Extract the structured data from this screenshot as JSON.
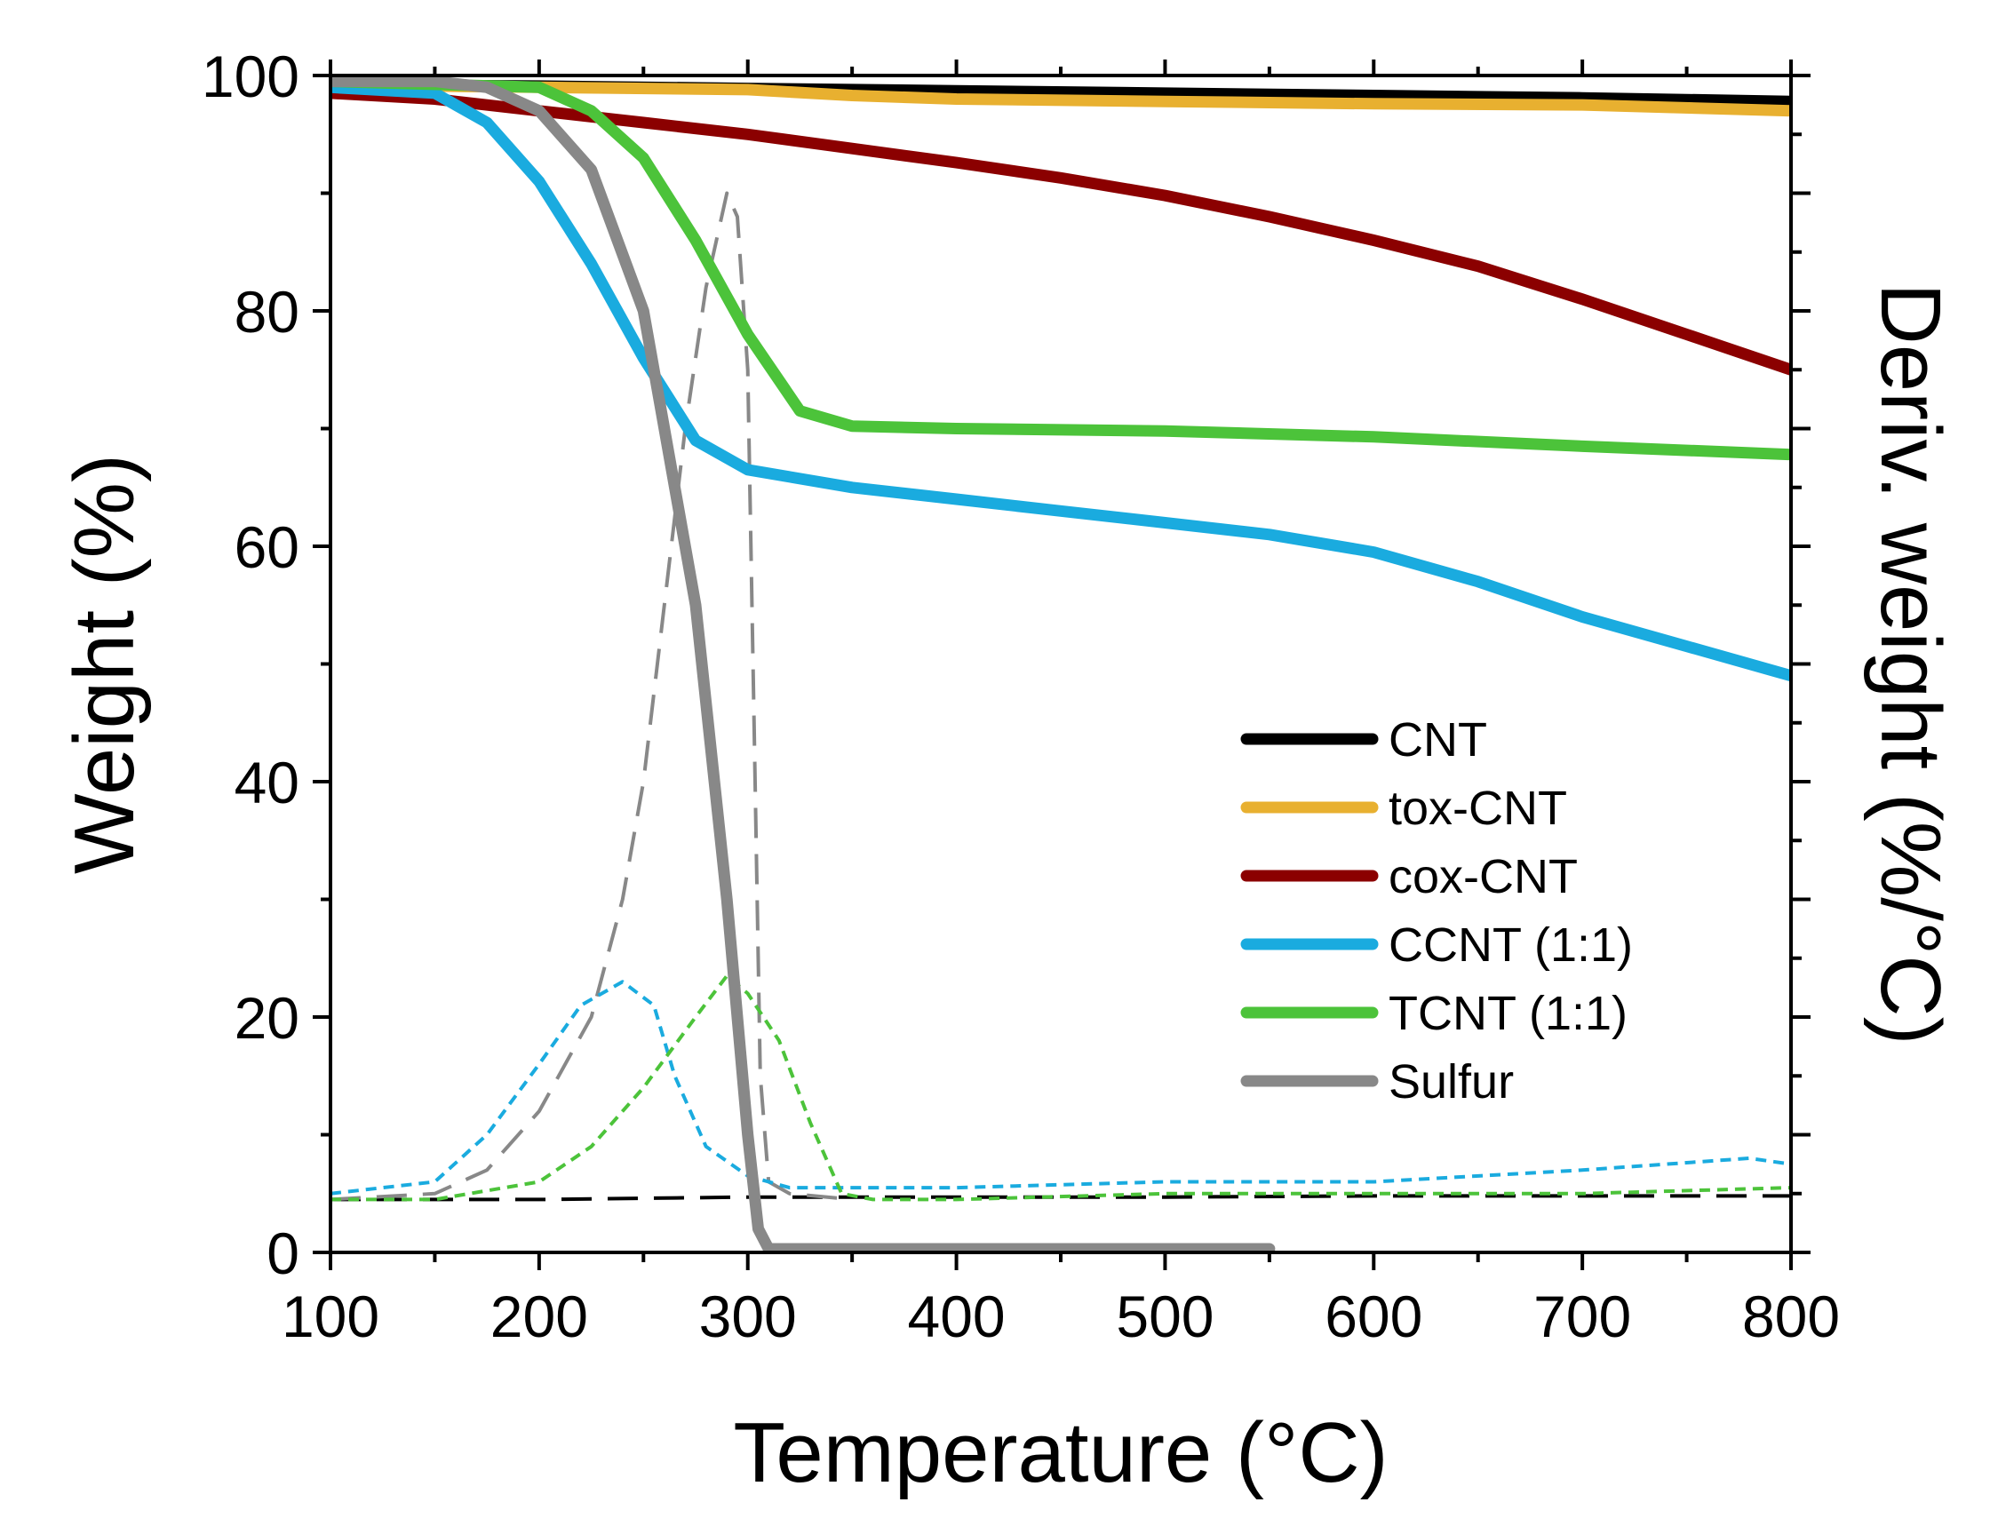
{
  "chart_data": {
    "type": "line",
    "xlabel": "Temperature (°C)",
    "ylabel": "Weight (%)",
    "y2label": "Deriv. weight (%/°C)",
    "xlim": [
      100,
      800
    ],
    "ylim": [
      0,
      100
    ],
    "y2lim": [
      0,
      10
    ],
    "xticks": [
      100,
      200,
      300,
      400,
      500,
      600,
      700,
      800
    ],
    "yticks": [
      0,
      20,
      40,
      60,
      80,
      100
    ],
    "legend_position": "center-right",
    "series": [
      {
        "name": "CNT",
        "color": "#000000",
        "style": "solid",
        "x": [
          100,
          200,
          300,
          400,
          500,
          600,
          700,
          800
        ],
        "y": [
          99.2,
          99.1,
          98.9,
          98.7,
          98.5,
          98.3,
          98.1,
          97.8
        ]
      },
      {
        "name": "tox-CNT",
        "color": "#E8B030",
        "style": "solid",
        "x": [
          100,
          200,
          300,
          350,
          400,
          500,
          600,
          700,
          800
        ],
        "y": [
          99.2,
          99.0,
          98.8,
          98.3,
          98.0,
          97.8,
          97.6,
          97.5,
          97.0
        ]
      },
      {
        "name": "cox-CNT",
        "color": "#8B0000",
        "style": "solid",
        "x": [
          100,
          150,
          200,
          250,
          300,
          350,
          400,
          450,
          500,
          550,
          600,
          650,
          700,
          750,
          800
        ],
        "y": [
          98.5,
          98.0,
          97.0,
          96.0,
          95.0,
          93.8,
          92.6,
          91.3,
          89.8,
          88.0,
          86.0,
          83.8,
          81.0,
          78.0,
          75.0
        ]
      },
      {
        "name": "CCNT (1:1)",
        "color": "#1AABDF",
        "style": "solid",
        "x": [
          100,
          150,
          175,
          200,
          225,
          250,
          275,
          300,
          350,
          400,
          450,
          500,
          550,
          600,
          650,
          700,
          750,
          800
        ],
        "y": [
          99.0,
          98.5,
          96.0,
          91.0,
          84.0,
          76.0,
          69.0,
          66.5,
          65.0,
          64.0,
          63.0,
          62.0,
          61.0,
          59.5,
          57.0,
          54.0,
          51.5,
          49.0
        ]
      },
      {
        "name": "TCNT (1:1)",
        "color": "#4CC33A",
        "style": "solid",
        "x": [
          100,
          200,
          225,
          250,
          275,
          300,
          325,
          350,
          400,
          500,
          600,
          700,
          800
        ],
        "y": [
          99.5,
          99.0,
          97.0,
          93.0,
          86.0,
          78.0,
          71.5,
          70.2,
          70.0,
          69.8,
          69.3,
          68.5,
          67.8
        ]
      },
      {
        "name": "Sulfur",
        "color": "#888888",
        "style": "solid",
        "x": [
          100,
          150,
          175,
          200,
          225,
          250,
          275,
          290,
          300,
          305,
          310,
          350,
          400,
          500,
          550
        ],
        "y": [
          99.5,
          99.5,
          99.0,
          97.0,
          92.0,
          80.0,
          55.0,
          30.0,
          10.0,
          2.0,
          0.3,
          0.3,
          0.3,
          0.3,
          0.3
        ]
      }
    ],
    "derivative_series": [
      {
        "name": "CNT deriv.",
        "color": "#000000",
        "style": "dashed",
        "x": [
          100,
          200,
          300,
          400,
          500,
          600,
          700,
          800
        ],
        "y": [
          0.45,
          0.45,
          0.47,
          0.47,
          0.47,
          0.48,
          0.48,
          0.48
        ]
      },
      {
        "name": "Sulfur deriv.",
        "color": "#888888",
        "style": "dashed",
        "x": [
          100,
          150,
          175,
          200,
          225,
          240,
          250,
          260,
          270,
          280,
          290,
          295,
          300,
          303,
          306,
          310,
          320,
          350
        ],
        "y": [
          0.45,
          0.5,
          0.7,
          1.2,
          2.0,
          3.0,
          4.0,
          5.5,
          7.0,
          8.2,
          9.0,
          8.8,
          7.5,
          4.5,
          1.5,
          0.6,
          0.5,
          0.45
        ]
      },
      {
        "name": "CCNT (1:1) deriv.",
        "color": "#1AABDF",
        "style": "short-dash",
        "x": [
          100,
          150,
          175,
          200,
          220,
          240,
          255,
          265,
          280,
          300,
          320,
          350,
          400,
          500,
          600,
          700,
          780,
          800
        ],
        "y": [
          0.5,
          0.6,
          1.0,
          1.6,
          2.1,
          2.3,
          2.1,
          1.5,
          0.9,
          0.65,
          0.55,
          0.55,
          0.55,
          0.6,
          0.6,
          0.7,
          0.8,
          0.75
        ]
      },
      {
        "name": "TCNT (1:1) deriv.",
        "color": "#4CC33A",
        "style": "short-dash",
        "x": [
          100,
          150,
          200,
          225,
          250,
          275,
          290,
          300,
          315,
          330,
          345,
          360,
          400,
          500,
          600,
          700,
          800
        ],
        "y": [
          0.45,
          0.45,
          0.6,
          0.9,
          1.4,
          2.0,
          2.35,
          2.2,
          1.8,
          1.1,
          0.5,
          0.45,
          0.45,
          0.5,
          0.5,
          0.5,
          0.55
        ]
      }
    ]
  }
}
